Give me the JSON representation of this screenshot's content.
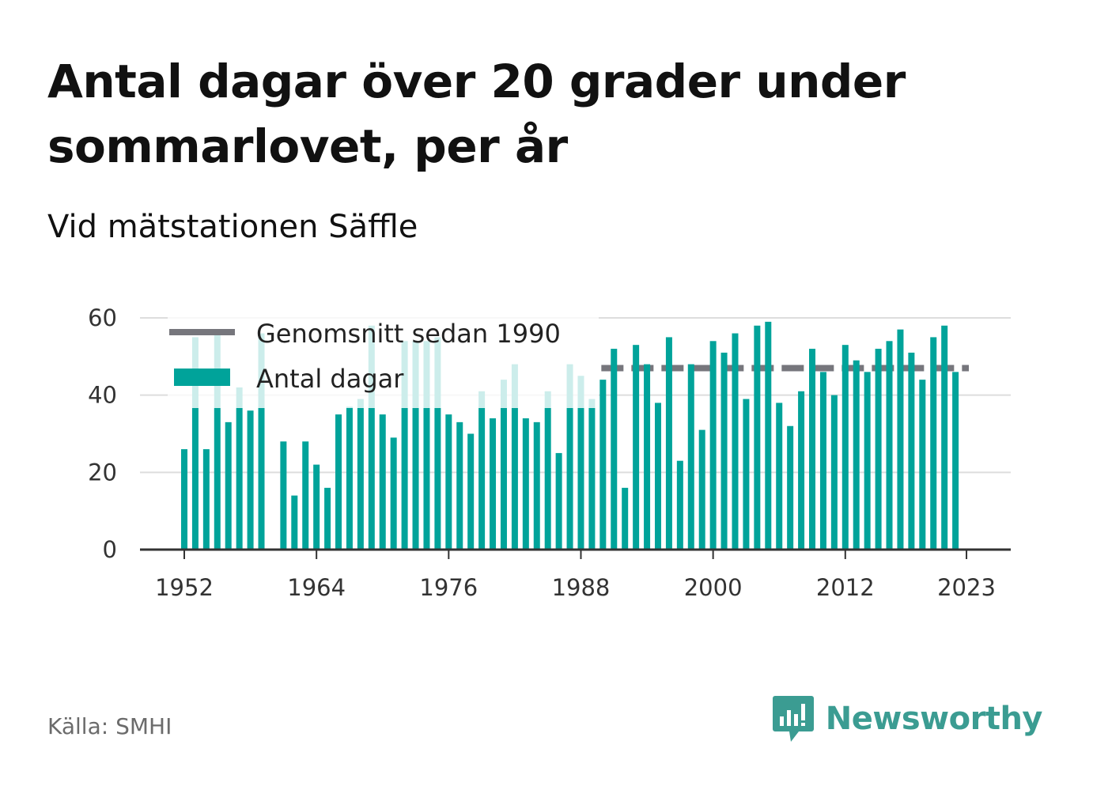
{
  "header": {
    "title": "Antal dagar över 20 grader under sommarlovet, per år",
    "subtitle": "Vid mätstationen Säffle"
  },
  "footer": {
    "source": "Källa: SMHI",
    "brand": "Newsworthy"
  },
  "colors": {
    "bar": "#00a39a",
    "average_line": "#76767c",
    "grid": "#dddddd",
    "axis": "#333333",
    "brand": "#3b9c92"
  },
  "icons": {
    "brand_logo": "bar-chart-speech-bubble-icon"
  },
  "chart_data": {
    "type": "bar",
    "title": "Antal dagar över 20 grader under sommarlovet, per år",
    "subtitle": "Vid mätstationen Säffle",
    "ylim": [
      0,
      60
    ],
    "yticks": [
      0,
      20,
      40,
      60
    ],
    "xticks": [
      "1952",
      "1964",
      "1976",
      "1988",
      "2000",
      "2012",
      "2023"
    ],
    "grid": true,
    "legend_placement": "top-left",
    "legend": [
      "Genomsnitt sedan 1990",
      "Antal dagar"
    ],
    "x": [
      1952,
      1953,
      1954,
      1955,
      1956,
      1957,
      1958,
      1959,
      1960,
      1961,
      1962,
      1963,
      1964,
      1965,
      1966,
      1967,
      1968,
      1969,
      1970,
      1971,
      1972,
      1973,
      1974,
      1975,
      1976,
      1977,
      1978,
      1979,
      1980,
      1981,
      1982,
      1983,
      1984,
      1985,
      1986,
      1987,
      1988,
      1989,
      1990,
      1991,
      1992,
      1993,
      1994,
      1995,
      1996,
      1997,
      1998,
      1999,
      2000,
      2001,
      2002,
      2003,
      2004,
      2005,
      2006,
      2007,
      2008,
      2009,
      2010,
      2011,
      2012,
      2013,
      2014,
      2015,
      2016,
      2017,
      2018,
      2019,
      2020,
      2021,
      2022,
      2023
    ],
    "series": [
      {
        "name": "Antal dagar",
        "values": [
          26,
          55,
          26,
          56,
          33,
          42,
          36,
          56,
          null,
          28,
          14,
          28,
          22,
          16,
          35,
          37,
          39,
          58,
          35,
          29,
          54,
          54,
          54,
          55,
          35,
          33,
          30,
          41,
          34,
          44,
          48,
          34,
          33,
          41,
          25,
          48,
          45,
          39,
          44,
          52,
          16,
          53,
          48,
          38,
          55,
          23,
          48,
          31,
          54,
          51,
          56,
          39,
          58,
          59,
          38,
          32,
          41,
          52,
          46,
          40,
          53,
          49,
          46,
          52,
          54,
          57,
          51,
          44,
          55,
          58,
          46,
          null
        ]
      },
      {
        "name": "Genomsnitt sedan 1990",
        "type": "line",
        "value": 47,
        "from": 1990,
        "to": 2023
      }
    ]
  }
}
